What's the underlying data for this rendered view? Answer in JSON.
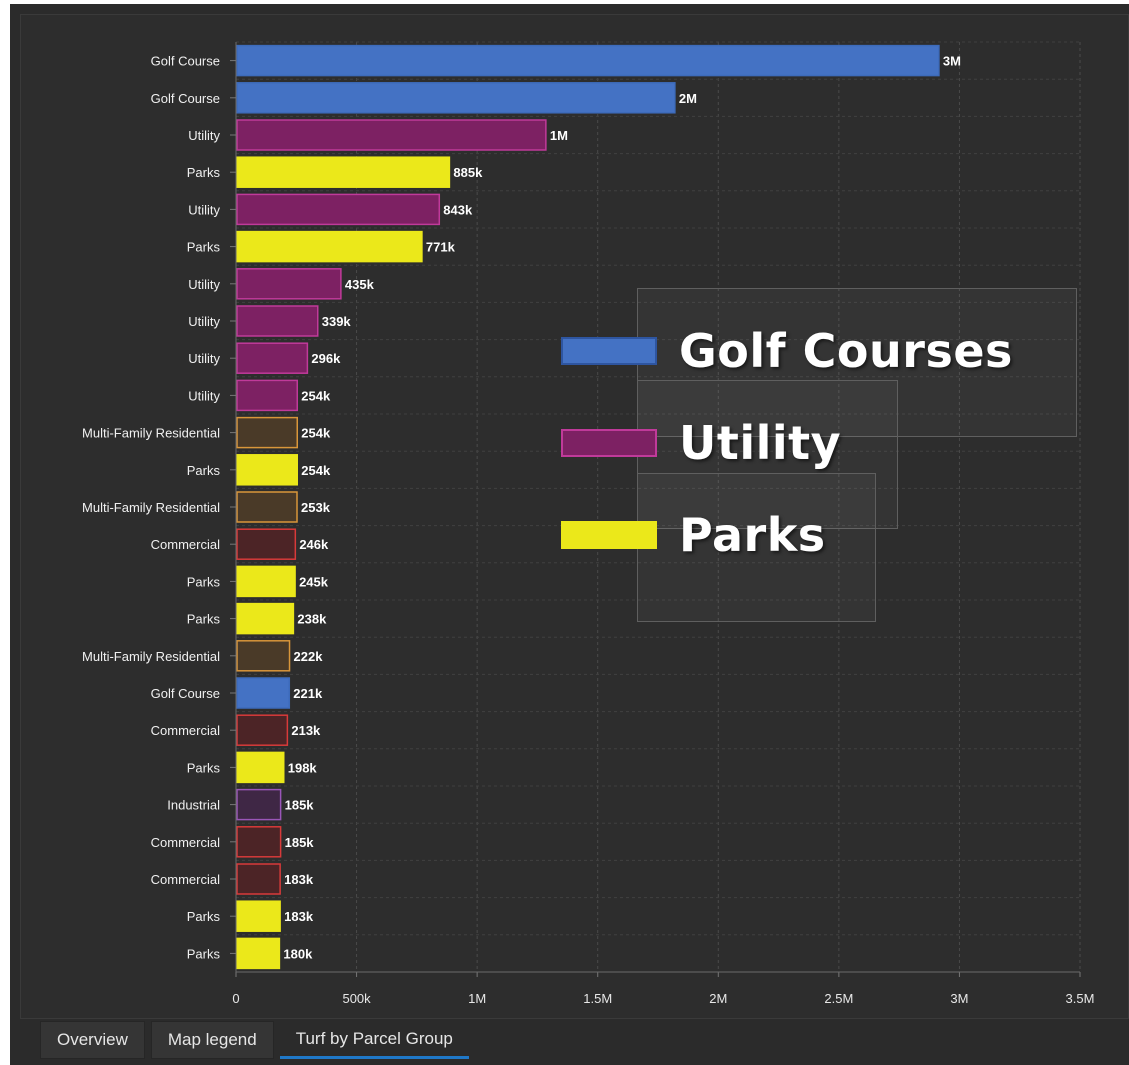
{
  "tabs": [
    {
      "label": "Overview",
      "active": false
    },
    {
      "label": "Map legend",
      "active": false
    },
    {
      "label": "Turf by Parcel Group",
      "active": true
    }
  ],
  "legend": [
    {
      "label": "Golf Courses",
      "fill": "#4472c4",
      "stroke": "#2e55a0"
    },
    {
      "label": "Utility",
      "fill": "#7d2163",
      "stroke": "#c03a9a"
    },
    {
      "label": "Parks",
      "fill": "#ebe81a",
      "stroke": "#ebe81a"
    }
  ],
  "colors": {
    "Golf Course": {
      "fill": "#4472c4",
      "stroke": "#3d6bbb"
    },
    "Utility": {
      "fill": "#7d2163",
      "stroke": "#c03a9a"
    },
    "Parks": {
      "fill": "#ebe81a",
      "stroke": "#ebe81a"
    },
    "Multi-Family Residential": {
      "fill": "#4a3a28",
      "stroke": "#d9963a"
    },
    "Commercial": {
      "fill": "#4c2426",
      "stroke": "#d83a3a"
    },
    "Industrial": {
      "fill": "#3f2745",
      "stroke": "#9a56b8"
    }
  },
  "chart_data": {
    "type": "bar",
    "orientation": "horizontal",
    "categories": [
      "Golf Course",
      "Golf Course",
      "Utility",
      "Parks",
      "Utility",
      "Parks",
      "Utility",
      "Utility",
      "Utility",
      "Utility",
      "Multi-Family Residential",
      "Parks",
      "Multi-Family Residential",
      "Commercial",
      "Parks",
      "Parks",
      "Multi-Family Residential",
      "Golf Course",
      "Commercial",
      "Parks",
      "Industrial",
      "Commercial",
      "Commercial",
      "Parks",
      "Parks"
    ],
    "values": [
      2915000,
      1820000,
      1285000,
      885000,
      843000,
      771000,
      435000,
      339000,
      296000,
      254000,
      254000,
      254000,
      253000,
      246000,
      245000,
      238000,
      222000,
      221000,
      213000,
      198000,
      185000,
      185000,
      183000,
      183000,
      180000
    ],
    "data_labels": [
      "3M",
      "2M",
      "1M",
      "885k",
      "843k",
      "771k",
      "435k",
      "339k",
      "296k",
      "254k",
      "254k",
      "254k",
      "253k",
      "246k",
      "245k",
      "238k",
      "222k",
      "221k",
      "213k",
      "198k",
      "185k",
      "185k",
      "183k",
      "183k",
      "180k"
    ],
    "x_ticks": [
      "0",
      "500k",
      "1M",
      "1.5M",
      "2M",
      "2.5M",
      "3M",
      "3.5M"
    ],
    "xlim": [
      0,
      3500000
    ],
    "grid": true,
    "legend_position": "center-right overlay"
  }
}
